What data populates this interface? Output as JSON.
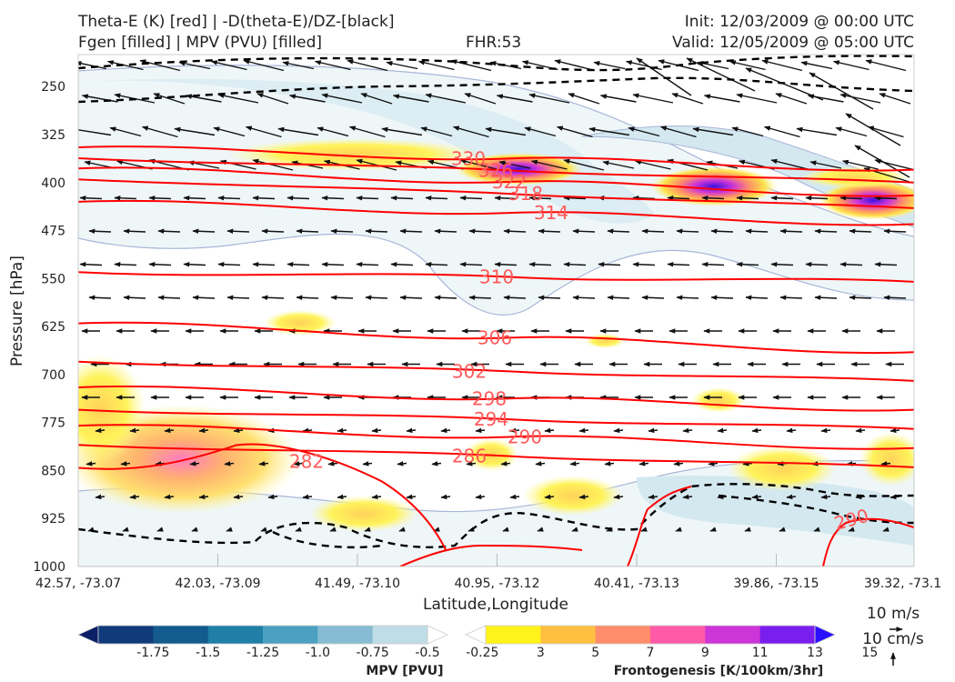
{
  "titles": {
    "left_line1": "Theta-E (K) [red] | -D(theta-E)/DZ-[black]",
    "left_line2": "Fgen [filled] | MPV (PVU) [filled]",
    "center": "FHR:53",
    "right_line1": "Init: 12/03/2009 @ 00:00 UTC",
    "right_line2": "Valid: 12/05/2009 @ 05:00 UTC"
  },
  "chart_data": {
    "type": "cross-section contour",
    "xlabel": "Latitude,Longitude",
    "ylabel": "Pressure [hPa]",
    "x_ticks": [
      "42.57, -73.07",
      "42.03, -73.09",
      "41.49, -73.10",
      "40.95, -73.12",
      "40.41, -73.13",
      "39.86, -73.15",
      "39.32, -73.1"
    ],
    "y_ticks": [
      250,
      325,
      400,
      475,
      550,
      625,
      700,
      775,
      850,
      925,
      1000
    ],
    "ylim": [
      1000,
      200
    ],
    "theta_e_contours": [
      {
        "value": 330,
        "label": "330",
        "pressure_left": 345,
        "pressure_right": 380
      },
      {
        "value": 326,
        "label": "326",
        "pressure_left": 362,
        "pressure_right": 400
      },
      {
        "value": 322,
        "label": "322",
        "pressure_left": 378,
        "pressure_right": 420
      },
      {
        "value": 318,
        "label": "318",
        "pressure_left": 395,
        "pressure_right": 440
      },
      {
        "value": 314,
        "label": "314",
        "pressure_left": 430,
        "pressure_right": 465
      },
      {
        "value": 310,
        "label": "310",
        "pressure_left": 540,
        "pressure_right": 555
      },
      {
        "value": 306,
        "label": "306",
        "pressure_left": 620,
        "pressure_right": 665
      },
      {
        "value": 302,
        "label": "302",
        "pressure_left": 680,
        "pressure_right": 710
      },
      {
        "value": 298,
        "label": "298",
        "pressure_left": 720,
        "pressure_right": 755
      },
      {
        "value": 294,
        "label": "294",
        "pressure_left": 755,
        "pressure_right": 785
      },
      {
        "value": 290,
        "label": "290",
        "pressure_left": 780,
        "pressure_right": 815
      },
      {
        "value": 286,
        "label": "286",
        "pressure_left": 810,
        "pressure_right": 845
      },
      {
        "value": 282,
        "label": "282",
        "pressure_left": 860,
        "pressure_right": 880
      }
    ],
    "extra_contour_labels": [
      "290"
    ],
    "mpv_colorbar": {
      "title": "MPV [PVU]",
      "levels": [
        "-1.75",
        "-1.5",
        "-1.25",
        "-1.0",
        "-0.75",
        "-0.5",
        "-0.25"
      ],
      "colors": [
        "#0b1f66",
        "#103a7a",
        "#135a8e",
        "#1f7fa6",
        "#4aa1c2",
        "#86bdd4",
        "#bfdde6",
        "#ffffff"
      ]
    },
    "fgen_colorbar": {
      "title": "Frontogenesis [K/100km/3hr]",
      "levels": [
        "3",
        "5",
        "7",
        "9",
        "11",
        "13",
        "15"
      ],
      "colors": [
        "#ffffff",
        "#fff31a",
        "#ffbf40",
        "#ff8c6a",
        "#ff5aa8",
        "#cc35d8",
        "#7a1eef",
        "#2a10ff"
      ]
    },
    "vector_keys": [
      {
        "label": "10 m/s"
      },
      {
        "label": "10 cm/s"
      }
    ],
    "colors": {
      "theta_e": "#ff0000",
      "stability": "#000000",
      "mpv_outline": "#9aaed6"
    }
  }
}
